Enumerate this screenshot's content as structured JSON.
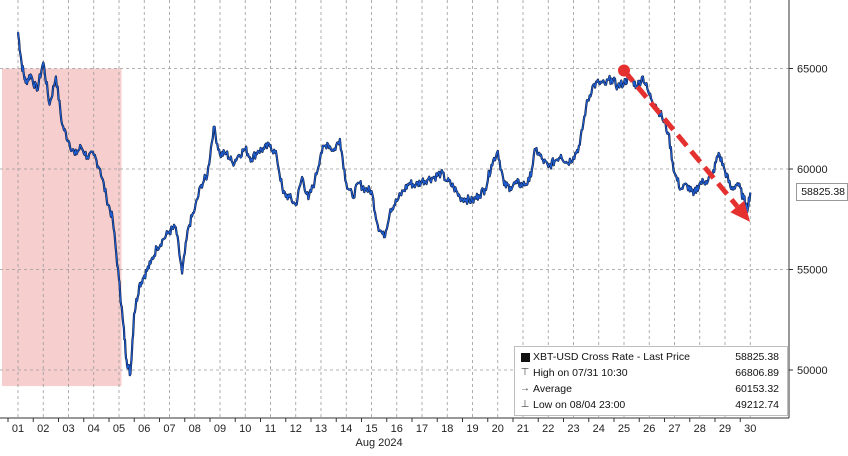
{
  "chart_data": {
    "type": "line",
    "title": "",
    "xlabel": "Aug 2024",
    "ylabel": "",
    "ylim": [
      49000,
      68500
    ],
    "y_ticks": [
      50000,
      55000,
      60000,
      65000
    ],
    "x_tick_labels": [
      "01",
      "02",
      "03",
      "04",
      "05",
      "06",
      "07",
      "08",
      "09",
      "10",
      "11",
      "12",
      "13",
      "14",
      "15",
      "16",
      "17",
      "18",
      "19",
      "20",
      "21",
      "22",
      "23",
      "24",
      "25",
      "26",
      "27",
      "28",
      "29",
      "30"
    ],
    "x_month_label": "Aug 2024",
    "grid": true,
    "series": [
      {
        "name": "XBT-USD Cross Rate - Last Price",
        "color": "#1f5fd6",
        "points": [
          [
            0.0,
            66806
          ],
          [
            0.15,
            65200
          ],
          [
            0.3,
            64300
          ],
          [
            0.5,
            64700
          ],
          [
            0.75,
            63900
          ],
          [
            1.0,
            65300
          ],
          [
            1.25,
            63200
          ],
          [
            1.5,
            64600
          ],
          [
            1.75,
            62200
          ],
          [
            2.0,
            61400
          ],
          [
            2.25,
            60700
          ],
          [
            2.5,
            61100
          ],
          [
            2.75,
            60600
          ],
          [
            3.0,
            60700
          ],
          [
            3.25,
            60000
          ],
          [
            3.5,
            58600
          ],
          [
            3.75,
            57500
          ],
          [
            4.0,
            54500
          ],
          [
            4.15,
            52500
          ],
          [
            4.3,
            50500
          ],
          [
            4.45,
            49800
          ],
          [
            4.6,
            52800
          ],
          [
            4.8,
            54200
          ],
          [
            5.0,
            54700
          ],
          [
            5.25,
            55300
          ],
          [
            5.5,
            56100
          ],
          [
            5.75,
            56500
          ],
          [
            6.0,
            56900
          ],
          [
            6.25,
            57100
          ],
          [
            6.5,
            54800
          ],
          [
            6.75,
            57100
          ],
          [
            7.0,
            58000
          ],
          [
            7.25,
            59200
          ],
          [
            7.5,
            59700
          ],
          [
            7.75,
            62100
          ],
          [
            8.0,
            60700
          ],
          [
            8.25,
            60800
          ],
          [
            8.5,
            60300
          ],
          [
            8.75,
            60700
          ],
          [
            9.0,
            61000
          ],
          [
            9.25,
            60500
          ],
          [
            9.5,
            60900
          ],
          [
            9.75,
            61000
          ],
          [
            10.0,
            61200
          ],
          [
            10.25,
            60600
          ],
          [
            10.5,
            58800
          ],
          [
            10.75,
            58600
          ],
          [
            11.0,
            58200
          ],
          [
            11.25,
            59600
          ],
          [
            11.5,
            58500
          ],
          [
            11.75,
            59400
          ],
          [
            12.0,
            60800
          ],
          [
            12.25,
            61300
          ],
          [
            12.5,
            60900
          ],
          [
            12.75,
            61500
          ],
          [
            13.0,
            59300
          ],
          [
            13.25,
            58600
          ],
          [
            13.5,
            59300
          ],
          [
            13.75,
            59000
          ],
          [
            14.0,
            58900
          ],
          [
            14.25,
            57200
          ],
          [
            14.5,
            56600
          ],
          [
            14.75,
            58000
          ],
          [
            15.0,
            58400
          ],
          [
            15.25,
            58900
          ],
          [
            15.5,
            59300
          ],
          [
            15.75,
            59200
          ],
          [
            16.0,
            59400
          ],
          [
            16.25,
            59500
          ],
          [
            16.5,
            59600
          ],
          [
            16.75,
            59800
          ],
          [
            17.0,
            59400
          ],
          [
            17.25,
            59100
          ],
          [
            17.5,
            58600
          ],
          [
            17.75,
            58500
          ],
          [
            18.0,
            58400
          ],
          [
            18.25,
            58700
          ],
          [
            18.5,
            59000
          ],
          [
            18.75,
            60200
          ],
          [
            19.0,
            60900
          ],
          [
            19.25,
            59200
          ],
          [
            19.5,
            59100
          ],
          [
            19.75,
            59300
          ],
          [
            20.0,
            59200
          ],
          [
            20.25,
            59400
          ],
          [
            20.5,
            61000
          ],
          [
            20.75,
            60500
          ],
          [
            21.0,
            60100
          ],
          [
            21.25,
            60400
          ],
          [
            21.5,
            60700
          ],
          [
            21.75,
            60300
          ],
          [
            22.0,
            60600
          ],
          [
            22.25,
            61200
          ],
          [
            22.5,
            63100
          ],
          [
            22.75,
            64100
          ],
          [
            23.0,
            64300
          ],
          [
            23.25,
            64200
          ],
          [
            23.5,
            64500
          ],
          [
            23.75,
            64100
          ],
          [
            24.0,
            64300
          ],
          [
            24.25,
            64600
          ],
          [
            24.5,
            64100
          ],
          [
            24.75,
            64600
          ],
          [
            25.0,
            63700
          ],
          [
            25.25,
            63200
          ],
          [
            25.5,
            62600
          ],
          [
            25.75,
            61800
          ],
          [
            26.0,
            59800
          ],
          [
            26.25,
            59000
          ],
          [
            26.5,
            59200
          ],
          [
            26.75,
            58700
          ],
          [
            27.0,
            59300
          ],
          [
            27.25,
            59400
          ],
          [
            27.5,
            59700
          ],
          [
            27.75,
            60800
          ],
          [
            28.0,
            59900
          ],
          [
            28.25,
            59000
          ],
          [
            28.5,
            59300
          ],
          [
            28.75,
            58500
          ],
          [
            28.9,
            58000
          ],
          [
            29.0,
            58825.38
          ]
        ]
      }
    ],
    "shaded_region": {
      "x_from": 0.0,
      "x_to": 4.1,
      "y_from": 49200,
      "y_to": 65000,
      "color": "#f5c6c6"
    },
    "trend_arrow": {
      "from": [
        24.0,
        64900
      ],
      "to": [
        29.0,
        57600
      ],
      "color": "#e53030"
    },
    "last_price_label": "58825.38",
    "legend": {
      "placement": "bottom-right",
      "entries": [
        {
          "label": "XBT-USD Cross Rate - Last Price",
          "value": "58825.38"
        },
        {
          "label": "High on 07/31 10:30",
          "value": "66806.89"
        },
        {
          "label": "Average",
          "value": "60153.32"
        },
        {
          "label": "Low on 08/04 23:00",
          "value": "49212.74"
        }
      ]
    }
  }
}
